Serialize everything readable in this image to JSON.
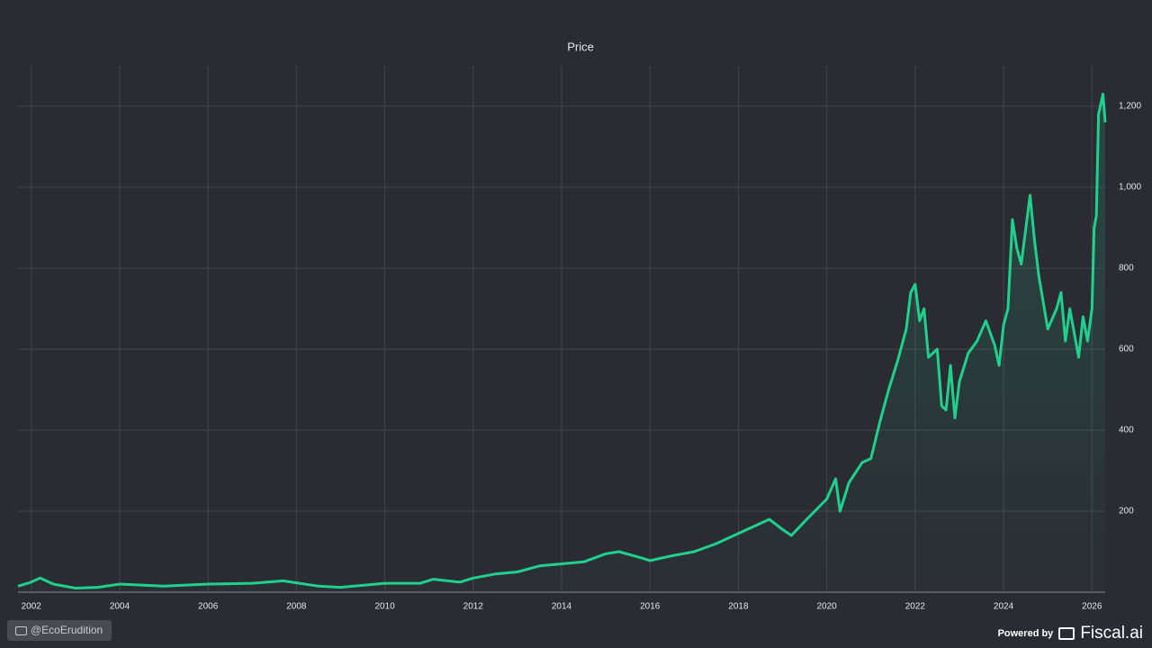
{
  "chart_data": {
    "type": "line",
    "title": "Price",
    "x": [
      2001.7,
      2002.0,
      2002.2,
      2002.5,
      2003.0,
      2003.5,
      2004.0,
      2005.0,
      2006.0,
      2007.0,
      2007.7,
      2008.5,
      2009.0,
      2010.0,
      2010.8,
      2011.1,
      2011.7,
      2012.0,
      2012.5,
      2013.0,
      2013.5,
      2014.0,
      2014.5,
      2015.0,
      2015.3,
      2015.8,
      2016.0,
      2016.5,
      2017.0,
      2017.5,
      2018.0,
      2018.5,
      2018.7,
      2019.0,
      2019.2,
      2019.5,
      2020.0,
      2020.2,
      2020.3,
      2020.5,
      2020.8,
      2021.0,
      2021.2,
      2021.4,
      2021.6,
      2021.8,
      2021.9,
      2022.0,
      2022.1,
      2022.2,
      2022.3,
      2022.5,
      2022.6,
      2022.7,
      2022.8,
      2022.9,
      2023.0,
      2023.2,
      2023.4,
      2023.6,
      2023.8,
      2023.9,
      2024.0,
      2024.1,
      2024.2,
      2024.3,
      2024.4,
      2024.6,
      2024.7,
      2024.8,
      2025.0,
      2025.2,
      2025.3,
      2025.4,
      2025.5,
      2025.7,
      2025.8,
      2025.9,
      2026.0,
      2026.05,
      2026.1,
      2026.15,
      2026.25,
      2026.3
    ],
    "series": [
      {
        "color": "#1fd18c",
        "values": [
          15,
          25,
          35,
          20,
          10,
          12,
          20,
          15,
          20,
          22,
          28,
          15,
          12,
          22,
          22,
          32,
          25,
          35,
          45,
          50,
          65,
          70,
          75,
          95,
          100,
          85,
          78,
          90,
          100,
          120,
          145,
          170,
          180,
          155,
          140,
          175,
          230,
          280,
          200,
          270,
          320,
          330,
          420,
          500,
          570,
          650,
          740,
          760,
          670,
          700,
          580,
          600,
          460,
          450,
          560,
          430,
          520,
          590,
          620,
          670,
          610,
          560,
          660,
          700,
          920,
          850,
          810,
          980,
          870,
          780,
          650,
          700,
          740,
          620,
          700,
          580,
          680,
          620,
          700,
          900,
          930,
          1180,
          1230,
          1160
        ]
      }
    ],
    "xlim": [
      2001.7,
      2026.3
    ],
    "xticks": [
      2002,
      2004,
      2006,
      2008,
      2010,
      2012,
      2014,
      2016,
      2018,
      2020,
      2022,
      2024,
      2026
    ],
    "ylim": [
      0,
      1300
    ],
    "yticks": [
      200,
      400,
      600,
      {
        "value": 800,
        "label": "800"
      },
      {
        "value": 1000,
        "label": "1,000"
      },
      {
        "value": 1200,
        "label": "1,200"
      }
    ],
    "grid": true
  },
  "watermark": "@EcoErudition",
  "footer": {
    "powered_by": "Powered by",
    "brand": "Fiscal.ai"
  }
}
